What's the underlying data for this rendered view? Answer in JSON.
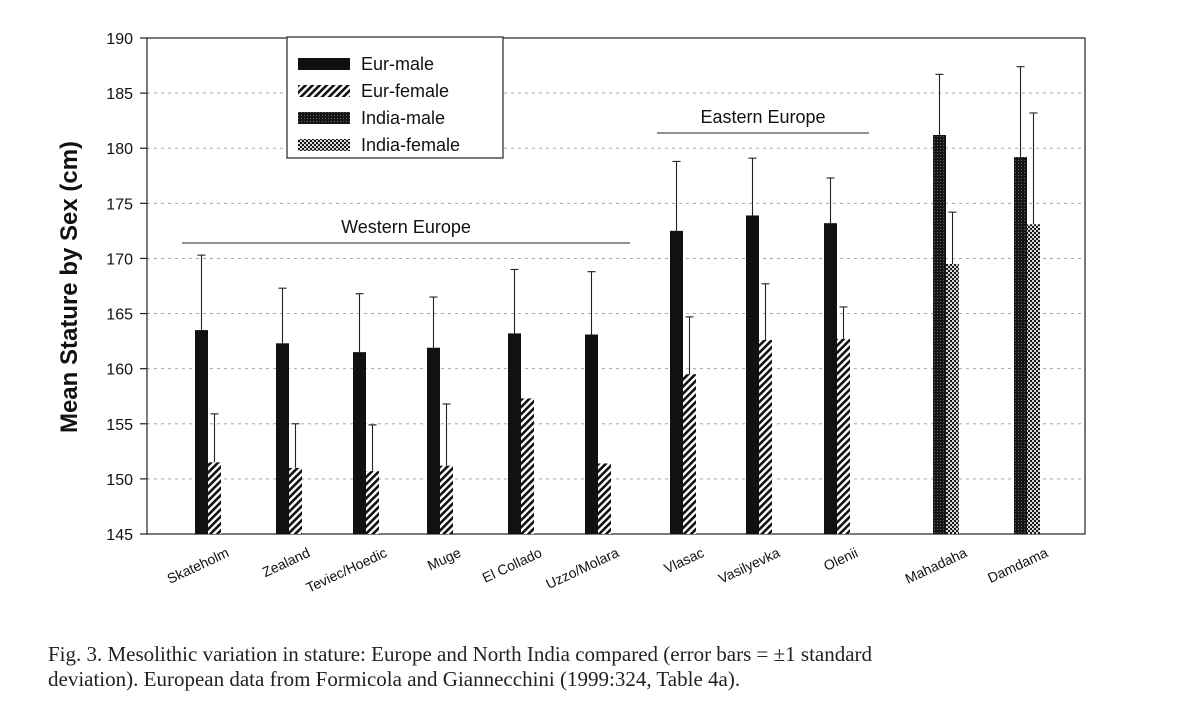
{
  "chart_data": {
    "type": "bar",
    "ylabel": "Mean Stature by Sex (cm)",
    "ylim": [
      145,
      190
    ],
    "yticks": [
      145,
      150,
      155,
      160,
      165,
      170,
      175,
      180,
      185,
      190
    ],
    "grid": "dashed horizontal",
    "legend_position": "top-left",
    "categories": [
      "Skateholm",
      "Zealand",
      "Teviec/Hoedic",
      "Muge",
      "El Collado",
      "Uzzo/Molara",
      "Vlasac",
      "Vasilyevka",
      "Olenii",
      "Mahadaha",
      "Damdama"
    ],
    "series": [
      {
        "name": "Eur-male",
        "pattern": "solid",
        "values": [
          163.5,
          162.3,
          161.5,
          161.9,
          163.2,
          163.1,
          172.5,
          173.9,
          173.2,
          null,
          null
        ],
        "error": [
          6.8,
          5.0,
          5.3,
          4.6,
          5.8,
          5.7,
          6.3,
          5.2,
          4.1,
          null,
          null
        ]
      },
      {
        "name": "Eur-female",
        "pattern": "hatched",
        "values": [
          151.5,
          151.0,
          150.7,
          151.2,
          157.3,
          151.4,
          159.5,
          162.6,
          162.7,
          null,
          null
        ],
        "error": [
          4.4,
          4.0,
          4.2,
          5.6,
          null,
          null,
          5.2,
          5.1,
          2.9,
          null,
          null
        ]
      },
      {
        "name": "India-male",
        "pattern": "dense",
        "values": [
          null,
          null,
          null,
          null,
          null,
          null,
          null,
          null,
          null,
          181.2,
          179.2
        ],
        "error": [
          null,
          null,
          null,
          null,
          null,
          null,
          null,
          null,
          null,
          5.5,
          8.2
        ]
      },
      {
        "name": "India-female",
        "pattern": "dotted",
        "values": [
          null,
          null,
          null,
          null,
          null,
          null,
          null,
          null,
          null,
          169.5,
          173.1
        ],
        "error": [
          null,
          null,
          null,
          null,
          null,
          null,
          null,
          null,
          null,
          4.7,
          10.1
        ]
      }
    ],
    "annotations": [
      {
        "text": "Western Europe",
        "from": "Skateholm",
        "to": "Uzzo/Molara"
      },
      {
        "text": "Eastern Europe",
        "from": "Vlasac",
        "to": "Olenii"
      }
    ]
  },
  "caption": {
    "line1": "Fig. 3.  Mesolithic variation in stature: Europe and North India compared (error bars = ±1 standard",
    "line2": "deviation). European data from Formicola and Giannecchini (1999:324, Table 4a)."
  }
}
